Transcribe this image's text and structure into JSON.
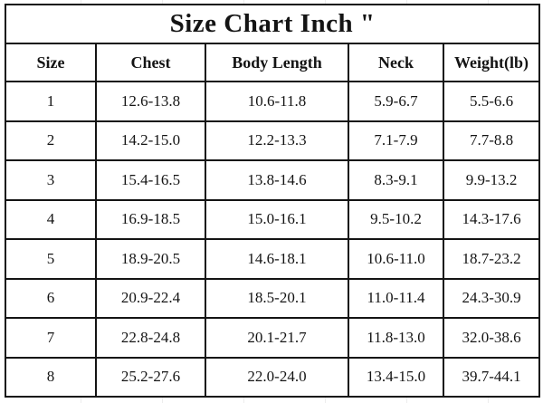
{
  "table": {
    "title": "Size Chart Inch \"",
    "headers": [
      "Size",
      "Chest",
      "Body Length",
      "Neck",
      "Weight(lb)"
    ],
    "rows": [
      [
        "1",
        "12.6-13.8",
        "10.6-11.8",
        "5.9-6.7",
        "5.5-6.6"
      ],
      [
        "2",
        "14.2-15.0",
        "12.2-13.3",
        "7.1-7.9",
        "7.7-8.8"
      ],
      [
        "3",
        "15.4-16.5",
        "13.8-14.6",
        "8.3-9.1",
        "9.9-13.2"
      ],
      [
        "4",
        "16.9-18.5",
        "15.0-16.1",
        "9.5-10.2",
        "14.3-17.6"
      ],
      [
        "5",
        "18.9-20.5",
        "14.6-18.1",
        "10.6-11.0",
        "18.7-23.2"
      ],
      [
        "6",
        "20.9-22.4",
        "18.5-20.1",
        "11.0-11.4",
        "24.3-30.9"
      ],
      [
        "7",
        "22.8-24.8",
        "20.1-21.7",
        "11.8-13.0",
        "32.0-38.6"
      ],
      [
        "8",
        "25.2-27.6",
        "22.0-24.0",
        "13.4-15.0",
        "39.7-44.1"
      ]
    ],
    "colors": {
      "border": "#141414",
      "text": "#141414",
      "background": "#ffffff"
    }
  },
  "chart_data": {
    "type": "table",
    "title": "Size Chart Inch \"",
    "unit": "inches (weight in lb)",
    "columns": [
      "Size",
      "Chest",
      "Body Length",
      "Neck",
      "Weight(lb)"
    ],
    "rows": [
      [
        "1",
        "12.6-13.8",
        "10.6-11.8",
        "5.9-6.7",
        "5.5-6.6"
      ],
      [
        "2",
        "14.2-15.0",
        "12.2-13.3",
        "7.1-7.9",
        "7.7-8.8"
      ],
      [
        "3",
        "15.4-16.5",
        "13.8-14.6",
        "8.3-9.1",
        "9.9-13.2"
      ],
      [
        "4",
        "16.9-18.5",
        "15.0-16.1",
        "9.5-10.2",
        "14.3-17.6"
      ],
      [
        "5",
        "18.9-20.5",
        "14.6-18.1",
        "10.6-11.0",
        "18.7-23.2"
      ],
      [
        "6",
        "20.9-22.4",
        "18.5-20.1",
        "11.0-11.4",
        "24.3-30.9"
      ],
      [
        "7",
        "22.8-24.8",
        "20.1-21.7",
        "11.8-13.0",
        "32.0-38.6"
      ],
      [
        "8",
        "25.2-27.6",
        "22.0-24.0",
        "13.4-15.0",
        "39.7-44.1"
      ]
    ]
  }
}
